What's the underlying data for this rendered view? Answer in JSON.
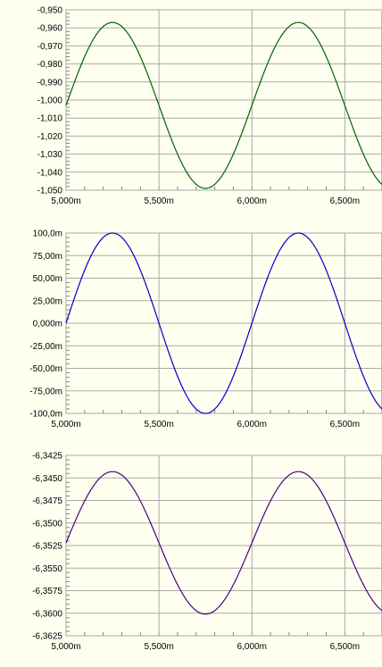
{
  "chart_data": [
    {
      "type": "line",
      "title": "",
      "xlabel": "",
      "ylabel": "",
      "xlim": [
        5.0,
        6.7
      ],
      "ylim": [
        -1.05,
        -0.95
      ],
      "x_ticks": [
        5.0,
        5.5,
        6.0,
        6.5
      ],
      "x_tick_labels": [
        "5,000m",
        "5,500m",
        "6,000m",
        "6,500m"
      ],
      "y_ticks": [
        -0.95,
        -0.96,
        -0.97,
        -0.98,
        -0.99,
        -1.0,
        -1.01,
        -1.02,
        -1.03,
        -1.04,
        -1.05
      ],
      "y_tick_labels": [
        "-0,950",
        "-0,960",
        "-0,970",
        "-0,980",
        "-0,990",
        "-1,000",
        "-1,010",
        "-1,020",
        "-1,030",
        "-1,040",
        "-1,050"
      ],
      "grid": true,
      "series": [
        {
          "color": "#006400",
          "waveform": "sine",
          "offset": -1.003,
          "amplitude": 0.046,
          "period": 1.0,
          "x_start": 5.0,
          "x_end": 6.7
        }
      ]
    },
    {
      "type": "line",
      "title": "",
      "xlabel": "",
      "ylabel": "",
      "xlim": [
        5.0,
        6.7
      ],
      "ylim": [
        -100.0,
        100.0
      ],
      "x_ticks": [
        5.0,
        5.5,
        6.0,
        6.5
      ],
      "x_tick_labels": [
        "5,000m",
        "5,500m",
        "6,000m",
        "6,500m"
      ],
      "y_ticks": [
        100,
        75,
        50,
        25,
        0,
        -25,
        -50,
        -75,
        -100
      ],
      "y_tick_labels": [
        "100,0m",
        "75,00m",
        "50,00m",
        "25,00m",
        "0,000m",
        "-25,00m",
        "-50,00m",
        "-75,00m",
        "-100,0m"
      ],
      "grid": true,
      "series": [
        {
          "color": "#0000cd",
          "waveform": "sine",
          "offset": 0.0,
          "amplitude": 100.0,
          "period": 1.0,
          "x_start": 5.0,
          "x_end": 6.7
        }
      ]
    },
    {
      "type": "line",
      "title": "",
      "xlabel": "",
      "ylabel": "",
      "xlim": [
        5.0,
        6.7
      ],
      "ylim": [
        -6.3625,
        -6.3425
      ],
      "x_ticks": [
        5.0,
        5.5,
        6.0,
        6.5
      ],
      "x_tick_labels": [
        "5,000m",
        "5,500m",
        "6,000m",
        "6,500m"
      ],
      "y_ticks": [
        -6.3425,
        -6.345,
        -6.3475,
        -6.35,
        -6.3525,
        -6.355,
        -6.3575,
        -6.36,
        -6.3625
      ],
      "y_tick_labels": [
        "-6,3425",
        "-6,3450",
        "-6,3475",
        "-6,3500",
        "-6,3525",
        "-6,3550",
        "-6,3575",
        "-6,3600",
        "-6,3625"
      ],
      "grid": true,
      "series": [
        {
          "color": "#4b0082",
          "waveform": "sine",
          "offset": -6.3522,
          "amplitude": 0.0079,
          "period": 1.0,
          "x_start": 5.0,
          "x_end": 6.7
        }
      ]
    }
  ]
}
